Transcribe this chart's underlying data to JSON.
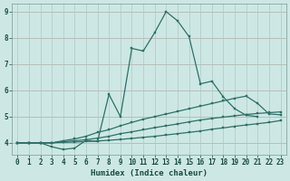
{
  "xlabel": "Humidex (Indice chaleur)",
  "xlim": [
    -0.5,
    23.5
  ],
  "ylim": [
    3.55,
    9.3
  ],
  "xticks": [
    0,
    1,
    2,
    3,
    4,
    5,
    6,
    7,
    8,
    9,
    10,
    11,
    12,
    13,
    14,
    15,
    16,
    17,
    18,
    19,
    20,
    21,
    22,
    23
  ],
  "yticks": [
    4,
    5,
    6,
    7,
    8,
    9
  ],
  "bg_color": "#cde8e4",
  "grid_major_color": "#b0c8c4",
  "grid_minor_color": "#b0c8c4",
  "hline_color": "#c89090",
  "line_color": "#2d7068",
  "line1_x": [
    0,
    1,
    2,
    3,
    4,
    5,
    6,
    7,
    8,
    9,
    10,
    11,
    12,
    13,
    14,
    15,
    16,
    17,
    18,
    19,
    20,
    21
  ],
  "line1_y": [
    4.0,
    4.0,
    4.0,
    3.85,
    3.75,
    3.8,
    4.1,
    4.05,
    5.85,
    5.0,
    7.6,
    7.5,
    8.2,
    9.0,
    8.65,
    8.05,
    6.25,
    6.35,
    5.75,
    5.3,
    5.05,
    5.0
  ],
  "line2_x": [
    0,
    1,
    2,
    3,
    4,
    5,
    6,
    7,
    8,
    9,
    10,
    11,
    12,
    13,
    14,
    15,
    16,
    17,
    18,
    19,
    20,
    21,
    22,
    23
  ],
  "line2_y": [
    4.0,
    4.0,
    4.0,
    4.0,
    4.08,
    4.15,
    4.25,
    4.4,
    4.5,
    4.65,
    4.78,
    4.9,
    5.0,
    5.1,
    5.2,
    5.3,
    5.4,
    5.5,
    5.6,
    5.7,
    5.78,
    5.5,
    5.1,
    5.07
  ],
  "line3_x": [
    0,
    1,
    2,
    3,
    4,
    5,
    6,
    7,
    8,
    9,
    10,
    11,
    12,
    13,
    14,
    15,
    16,
    17,
    18,
    19,
    20,
    21,
    22,
    23
  ],
  "line3_y": [
    4.0,
    4.0,
    4.0,
    4.0,
    4.04,
    4.08,
    4.12,
    4.18,
    4.25,
    4.35,
    4.42,
    4.5,
    4.58,
    4.65,
    4.72,
    4.8,
    4.87,
    4.93,
    4.98,
    5.03,
    5.08,
    5.12,
    5.15,
    5.18
  ],
  "line4_x": [
    0,
    1,
    2,
    3,
    4,
    5,
    6,
    7,
    8,
    9,
    10,
    11,
    12,
    13,
    14,
    15,
    16,
    17,
    18,
    19,
    20,
    21,
    22,
    23
  ],
  "line4_y": [
    4.0,
    4.0,
    4.0,
    4.0,
    4.02,
    4.03,
    4.05,
    4.07,
    4.1,
    4.13,
    4.17,
    4.21,
    4.25,
    4.3,
    4.35,
    4.4,
    4.45,
    4.52,
    4.57,
    4.63,
    4.68,
    4.73,
    4.78,
    4.85
  ]
}
